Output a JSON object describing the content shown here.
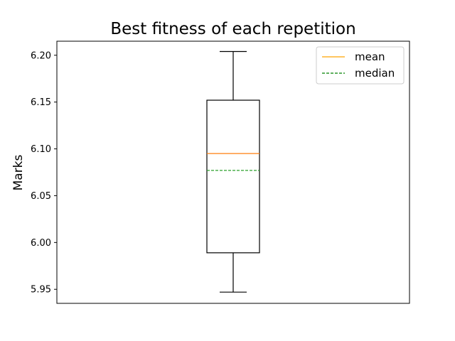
{
  "chart_data": {
    "type": "box",
    "title": "Best fitness of each repetition",
    "xlabel": "",
    "ylabel": "Marks",
    "ylim": [
      5.935,
      6.215
    ],
    "yticks": [
      5.95,
      6.0,
      6.05,
      6.1,
      6.15,
      6.2
    ],
    "ytick_labels": [
      "5.95",
      "6.00",
      "6.05",
      "6.10",
      "6.15",
      "6.20"
    ],
    "grid": false,
    "legend_position": "top-right",
    "box": {
      "whisker_low": 5.947,
      "q1": 5.989,
      "median": 6.077,
      "mean": 6.095,
      "q3": 6.152,
      "whisker_high": 6.204
    },
    "legend": [
      {
        "label": "mean",
        "color": "#ffa500",
        "style": "solid"
      },
      {
        "label": "median",
        "color": "#008000",
        "style": "dashed"
      }
    ],
    "colors": {
      "box": "#000000",
      "mean_line": "#ff7f0e",
      "median_line": "#2ca02c"
    }
  }
}
